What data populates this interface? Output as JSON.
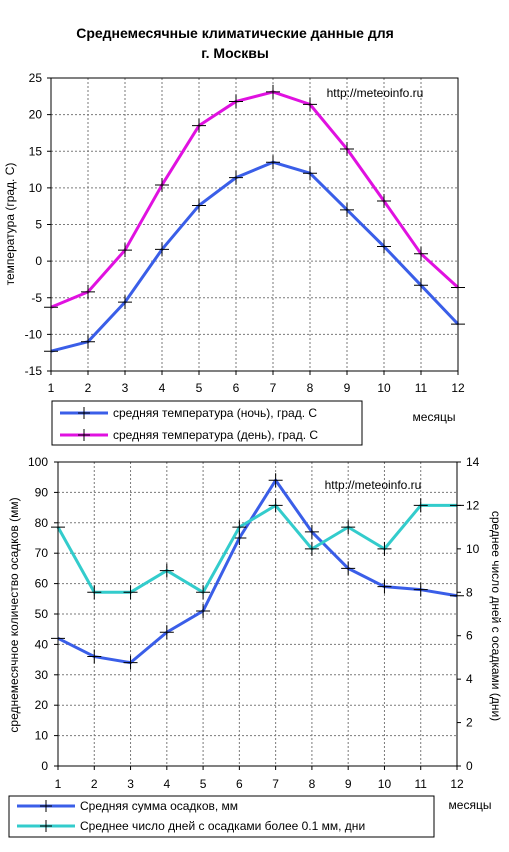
{
  "title_line1": "Среднемесячные климатические данные для",
  "title_line2": "г. Москвы",
  "chart_data": [
    {
      "type": "line",
      "x": [
        1,
        2,
        3,
        4,
        5,
        6,
        7,
        8,
        9,
        10,
        11,
        12
      ],
      "xlabel": "месяцы",
      "ylabel": "температура (град. С)",
      "ylim": [
        -15,
        25
      ],
      "yticks": [
        -15,
        -10,
        -5,
        0,
        5,
        10,
        15,
        20,
        25
      ],
      "grid": true,
      "watermark": "http://meteoinfo.ru",
      "legend_position": "bottom",
      "series": [
        {
          "name": "средняя температура (ночь), град. С",
          "color": "#3a5ee8",
          "values": [
            -12.3,
            -11,
            -5.6,
            1.6,
            7.6,
            11.4,
            13.5,
            12,
            7,
            2,
            -3.3,
            -8.6
          ]
        },
        {
          "name": "средняя температура (день), град. С",
          "color": "#e011e0",
          "values": [
            -6.3,
            -4.2,
            1.5,
            10.4,
            18.5,
            21.8,
            23.1,
            21.4,
            15.3,
            8.2,
            1,
            -3.6
          ]
        }
      ]
    },
    {
      "type": "line",
      "x": [
        1,
        2,
        3,
        4,
        5,
        6,
        7,
        8,
        9,
        10,
        11,
        12
      ],
      "xlabel": "месяцы",
      "ylabel": "среднемесячное количество осадков (мм)",
      "ylabel_right": "среднее число дней с осадками (дни)",
      "ylim": [
        0,
        100
      ],
      "yticks": [
        0,
        10,
        20,
        30,
        40,
        50,
        60,
        70,
        80,
        90,
        100
      ],
      "ylim_right": [
        0,
        14
      ],
      "yticks_right": [
        0,
        2,
        4,
        6,
        8,
        10,
        12,
        14
      ],
      "grid": true,
      "watermark": "http://meteoinfo.ru",
      "legend_position": "bottom",
      "series": [
        {
          "name": "Средняя сумма осадков, мм",
          "color": "#3a5ee8",
          "axis": "left",
          "values": [
            42,
            36,
            34,
            44,
            51,
            75,
            94,
            77,
            65,
            59,
            58,
            56
          ]
        },
        {
          "name": "Среднее число дней с  осадками более 0.1 мм, дни",
          "color": "#33cccc",
          "axis": "right",
          "values": [
            11,
            8,
            8,
            9,
            8,
            11,
            12,
            10,
            11,
            10,
            12,
            12
          ]
        }
      ]
    }
  ]
}
